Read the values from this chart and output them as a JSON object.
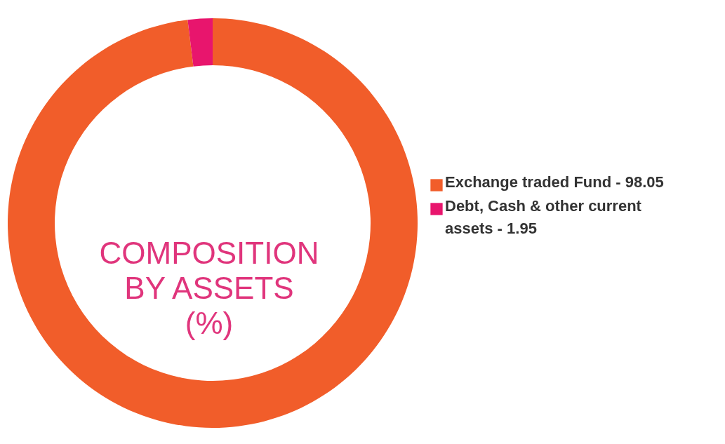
{
  "chart_data": {
    "type": "donut",
    "title": "COMPOSITION BY ASSETS (%)",
    "categories": [
      "Exchange traded Fund - 98.05",
      "Debt, Cash & other current assets - 1.95"
    ],
    "values": [
      98.05,
      1.95
    ],
    "colors": [
      "#f15d2a",
      "#e8156d"
    ],
    "legend": "right"
  }
}
